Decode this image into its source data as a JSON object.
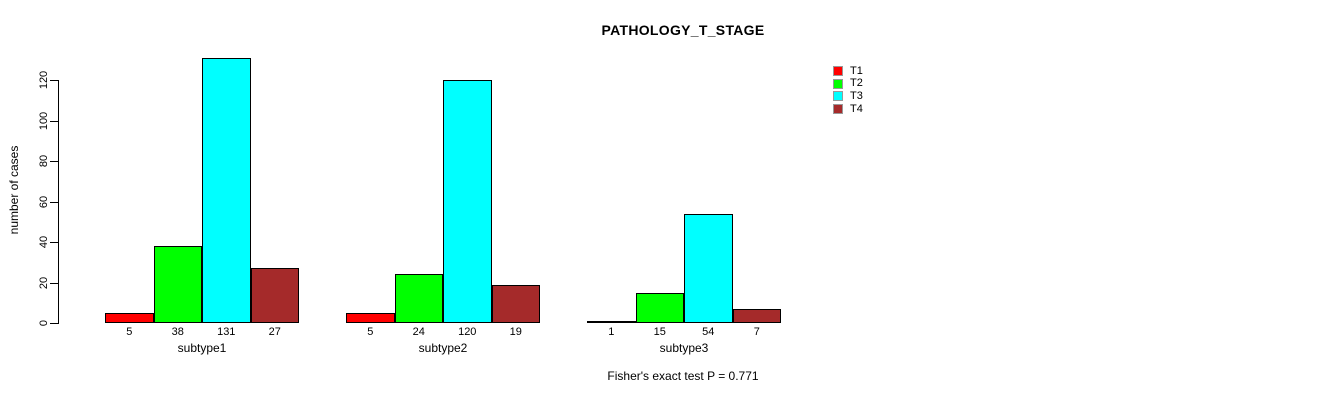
{
  "chart_data": {
    "type": "bar",
    "title": "PATHOLOGY_T_STAGE",
    "ylabel": "number of cases",
    "xlabel": "",
    "categories": [
      "subtype1",
      "subtype2",
      "subtype3"
    ],
    "series": [
      {
        "name": "T1",
        "color": "#ff0000",
        "values": [
          5,
          5,
          1
        ]
      },
      {
        "name": "T2",
        "color": "#00ff00",
        "values": [
          38,
          24,
          15
        ]
      },
      {
        "name": "T3",
        "color": "#00ffff",
        "values": [
          131,
          120,
          54
        ]
      },
      {
        "name": "T4",
        "color": "#a52a2a",
        "values": [
          27,
          19,
          7
        ]
      }
    ],
    "y_ticks": [
      0,
      20,
      40,
      60,
      80,
      100,
      120
    ],
    "ylim": [
      0,
      120
    ],
    "grid": false,
    "legend_position": "right",
    "bar_value_labels_shown": true,
    "annotation": "Fisher's exact test P = 0.771"
  }
}
